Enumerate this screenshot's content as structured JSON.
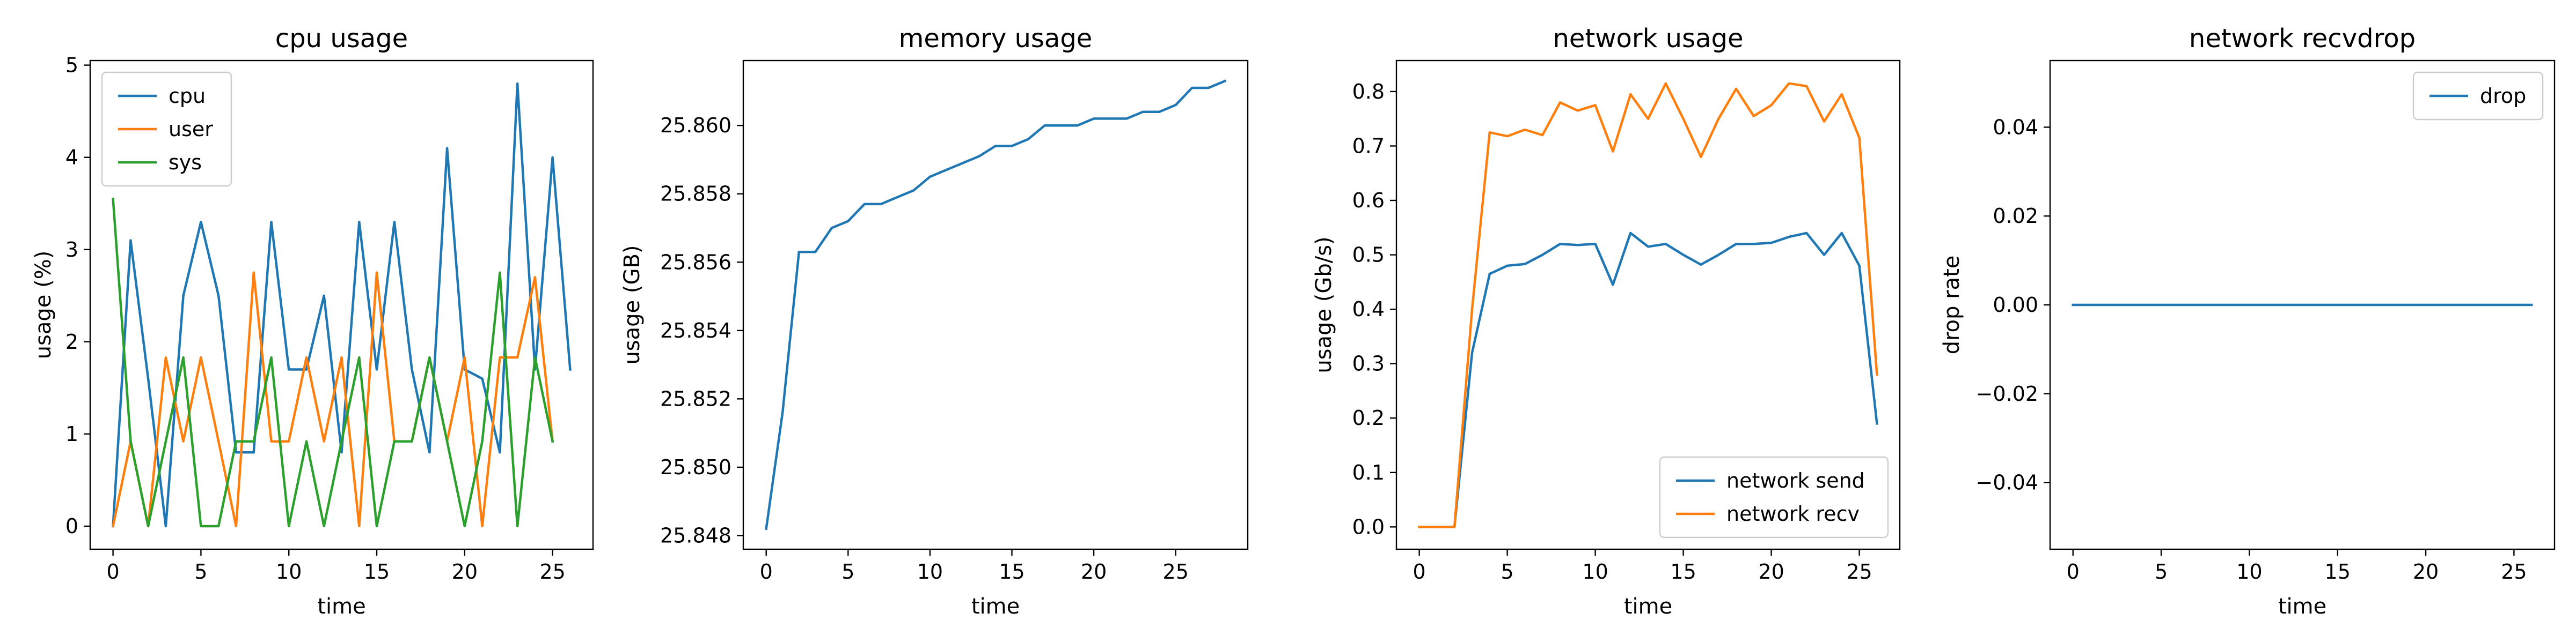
{
  "chart_data": [
    {
      "type": "line",
      "title": "cpu usage",
      "xlabel": "time",
      "ylabel": "usage (%)",
      "xlim": [
        -1.3,
        27.3
      ],
      "ylim": [
        -0.25,
        5.05
      ],
      "xticks": [
        0,
        5,
        10,
        15,
        20,
        25
      ],
      "yticks": [
        0,
        1,
        2,
        3,
        4,
        5
      ],
      "tick_decimals": 0,
      "legend": "top-left",
      "x": [
        0,
        1,
        2,
        3,
        4,
        5,
        6,
        7,
        8,
        9,
        10,
        11,
        12,
        13,
        14,
        15,
        16,
        17,
        18,
        19,
        20,
        21,
        22,
        23,
        24,
        25,
        26
      ],
      "series": [
        {
          "name": "cpu",
          "color": "#1f77b4",
          "values": [
            0,
            3.1,
            1.6,
            0,
            2.5,
            3.3,
            2.5,
            0.8,
            0.8,
            3.3,
            1.7,
            1.7,
            2.5,
            0.8,
            3.3,
            1.7,
            3.3,
            1.7,
            0.8,
            4.1,
            1.7,
            1.6,
            0.8,
            4.8,
            1.7,
            4.0,
            1.7
          ]
        },
        {
          "name": "user",
          "color": "#ff7f0e",
          "values": [
            0,
            0.92,
            0,
            1.83,
            0.92,
            1.83,
            0.92,
            0,
            2.75,
            0.92,
            0.92,
            1.83,
            0.92,
            1.83,
            0,
            2.75,
            0.92,
            0.92,
            1.83,
            0.92,
            1.83,
            0,
            1.83,
            1.83,
            2.7,
            0.92,
            null
          ]
        },
        {
          "name": "sys",
          "color": "#2ca02c",
          "values": [
            3.55,
            0.92,
            0,
            0.92,
            1.83,
            0,
            0,
            0.92,
            0.92,
            1.83,
            0,
            0.92,
            0,
            0.92,
            1.83,
            0,
            0.92,
            0.92,
            1.83,
            0.92,
            0,
            0.92,
            2.75,
            0,
            1.83,
            0.92,
            null
          ]
        }
      ]
    },
    {
      "type": "line",
      "title": "memory usage",
      "xlabel": "time",
      "ylabel": "usage (GB)",
      "xlim": [
        -1.4,
        29.4
      ],
      "ylim": [
        25.8476,
        25.8619
      ],
      "xticks": [
        0,
        5,
        10,
        15,
        20,
        25
      ],
      "yticks": [
        25.848,
        25.85,
        25.852,
        25.854,
        25.856,
        25.858,
        25.86
      ],
      "tick_decimals": 3,
      "legend": "none",
      "x": [
        0,
        1,
        2,
        3,
        4,
        5,
        6,
        7,
        8,
        9,
        10,
        11,
        12,
        13,
        14,
        15,
        16,
        17,
        18,
        19,
        20,
        21,
        22,
        23,
        24,
        25,
        26,
        27,
        28
      ],
      "series": [
        {
          "name": "",
          "color": "#1f77b4",
          "values": [
            25.8482,
            25.8516,
            25.8563,
            25.8563,
            25.857,
            25.8572,
            25.8577,
            25.8577,
            25.8579,
            25.8581,
            25.8585,
            25.8587,
            25.8589,
            25.8591,
            25.8594,
            25.8594,
            25.8596,
            25.86,
            25.86,
            25.86,
            25.8602,
            25.8602,
            25.8602,
            25.8604,
            25.8604,
            25.8606,
            25.8611,
            25.8611,
            25.8613
          ]
        }
      ]
    },
    {
      "type": "line",
      "title": "network usage",
      "xlabel": "time",
      "ylabel": "usage (Gb/s)",
      "xlim": [
        -1.3,
        27.3
      ],
      "ylim": [
        -0.041,
        0.857
      ],
      "xticks": [
        0,
        5,
        10,
        15,
        20,
        25
      ],
      "yticks": [
        0,
        0.1,
        0.2,
        0.3,
        0.4,
        0.5,
        0.6,
        0.7,
        0.8
      ],
      "tick_decimals": 1,
      "legend": "bottom-right",
      "x": [
        0,
        1,
        2,
        3,
        4,
        5,
        6,
        7,
        8,
        9,
        10,
        11,
        12,
        13,
        14,
        15,
        16,
        17,
        18,
        19,
        20,
        21,
        22,
        23,
        24,
        25,
        26
      ],
      "series": [
        {
          "name": "network send",
          "color": "#1f77b4",
          "values": [
            0,
            0,
            0,
            0.32,
            0.465,
            0.48,
            0.483,
            0.5,
            0.52,
            0.518,
            0.52,
            0.445,
            0.54,
            0.515,
            0.52,
            0.5,
            0.482,
            0.5,
            0.52,
            0.52,
            0.522,
            0.533,
            0.54,
            0.5,
            0.54,
            0.48,
            0.19
          ]
        },
        {
          "name": "network recv",
          "color": "#ff7f0e",
          "values": [
            0,
            0,
            0,
            0.4,
            0.725,
            0.718,
            0.73,
            0.72,
            0.78,
            0.765,
            0.775,
            0.69,
            0.795,
            0.75,
            0.815,
            0.75,
            0.68,
            0.75,
            0.805,
            0.755,
            0.775,
            0.815,
            0.81,
            0.745,
            0.795,
            0.715,
            0.28
          ]
        }
      ]
    },
    {
      "type": "line",
      "title": "network recvdrop",
      "xlabel": "time",
      "ylabel": "drop rate",
      "xlim": [
        -1.3,
        27.3
      ],
      "ylim": [
        -0.055,
        0.055
      ],
      "xticks": [
        0,
        5,
        10,
        15,
        20,
        25
      ],
      "yticks": [
        -0.04,
        -0.02,
        0.0,
        0.02,
        0.04
      ],
      "tick_decimals": 2,
      "legend": "top-right",
      "x": [
        0,
        1,
        2,
        3,
        4,
        5,
        6,
        7,
        8,
        9,
        10,
        11,
        12,
        13,
        14,
        15,
        16,
        17,
        18,
        19,
        20,
        21,
        22,
        23,
        24,
        25,
        26
      ],
      "series": [
        {
          "name": "drop",
          "color": "#1f77b4",
          "values": [
            0,
            0,
            0,
            0,
            0,
            0,
            0,
            0,
            0,
            0,
            0,
            0,
            0,
            0,
            0,
            0,
            0,
            0,
            0,
            0,
            0,
            0,
            0,
            0,
            0,
            0,
            0
          ]
        }
      ]
    }
  ]
}
